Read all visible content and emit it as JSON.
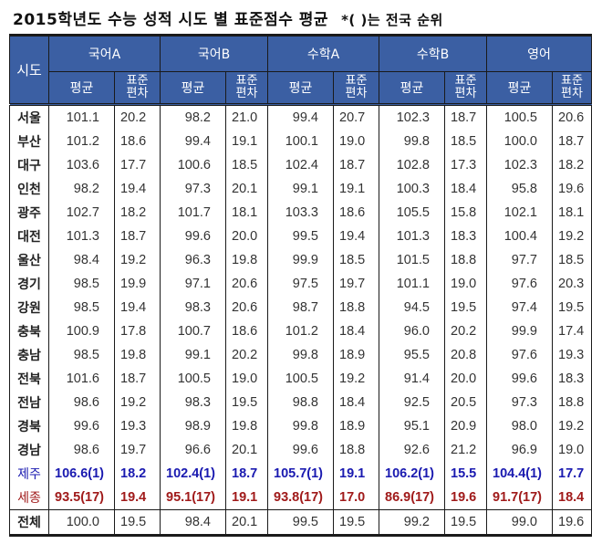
{
  "title": {
    "main": "2015학년도 수능 성적 시도 별 표준점수 평균",
    "note": "*( )는 전국 순위"
  },
  "table": {
    "region_header": "시도",
    "subjects": [
      "국어A",
      "국어B",
      "수학A",
      "수학B",
      "영어"
    ],
    "sub_headers": {
      "avg": "평균",
      "sd_line1": "표준",
      "sd_line2": "편차"
    },
    "colors": {
      "header_bg": "#3b5fa3",
      "header_text": "#ffffff",
      "rank1": "#1a1ab0",
      "rank17": "#a01a1a"
    },
    "rows": [
      {
        "region": "서울",
        "values": [
          "101.1",
          "20.2",
          "98.2",
          "21.0",
          "99.4",
          "20.7",
          "102.3",
          "18.7",
          "100.5",
          "20.6"
        ]
      },
      {
        "region": "부산",
        "values": [
          "101.2",
          "18.6",
          "99.4",
          "19.1",
          "100.1",
          "19.0",
          "99.8",
          "18.5",
          "100.0",
          "18.7"
        ]
      },
      {
        "region": "대구",
        "values": [
          "103.6",
          "17.7",
          "100.6",
          "18.5",
          "102.4",
          "18.7",
          "102.8",
          "17.3",
          "102.3",
          "18.2"
        ]
      },
      {
        "region": "인천",
        "values": [
          "98.2",
          "19.4",
          "97.3",
          "20.1",
          "99.1",
          "19.1",
          "100.3",
          "18.4",
          "95.8",
          "19.6"
        ]
      },
      {
        "region": "광주",
        "values": [
          "102.7",
          "18.2",
          "101.7",
          "18.1",
          "103.3",
          "18.6",
          "105.5",
          "15.8",
          "102.1",
          "18.1"
        ]
      },
      {
        "region": "대전",
        "values": [
          "101.3",
          "18.7",
          "99.6",
          "20.0",
          "99.5",
          "19.4",
          "101.3",
          "18.3",
          "100.4",
          "19.2"
        ]
      },
      {
        "region": "울산",
        "values": [
          "98.4",
          "19.2",
          "96.3",
          "19.8",
          "99.9",
          "18.5",
          "101.5",
          "18.8",
          "97.7",
          "18.5"
        ]
      },
      {
        "region": "경기",
        "values": [
          "98.5",
          "19.9",
          "97.1",
          "20.6",
          "97.5",
          "19.7",
          "101.1",
          "19.0",
          "97.6",
          "20.3"
        ]
      },
      {
        "region": "강원",
        "values": [
          "98.5",
          "19.4",
          "98.3",
          "20.6",
          "98.7",
          "18.8",
          "94.5",
          "19.5",
          "97.4",
          "19.5"
        ]
      },
      {
        "region": "충북",
        "values": [
          "100.9",
          "17.8",
          "100.7",
          "18.6",
          "101.2",
          "18.4",
          "96.0",
          "20.2",
          "99.9",
          "17.4"
        ]
      },
      {
        "region": "충남",
        "values": [
          "98.5",
          "19.8",
          "99.1",
          "20.2",
          "99.8",
          "18.9",
          "95.5",
          "20.8",
          "97.6",
          "19.3"
        ]
      },
      {
        "region": "전북",
        "values": [
          "101.6",
          "18.7",
          "100.5",
          "19.0",
          "100.5",
          "19.2",
          "91.4",
          "20.0",
          "99.6",
          "18.3"
        ]
      },
      {
        "region": "전남",
        "values": [
          "98.6",
          "19.2",
          "98.3",
          "19.5",
          "98.8",
          "18.4",
          "92.5",
          "20.5",
          "97.3",
          "18.8"
        ]
      },
      {
        "region": "경북",
        "values": [
          "99.6",
          "19.3",
          "98.9",
          "19.8",
          "99.8",
          "18.9",
          "95.1",
          "20.9",
          "98.0",
          "19.2"
        ]
      },
      {
        "region": "경남",
        "values": [
          "98.6",
          "19.7",
          "96.6",
          "20.1",
          "99.6",
          "18.8",
          "92.6",
          "21.2",
          "96.9",
          "19.0"
        ]
      },
      {
        "region": "제주",
        "highlight": "blue",
        "values": [
          "106.6(1)",
          "18.2",
          "102.4(1)",
          "18.7",
          "105.7(1)",
          "19.1",
          "106.2(1)",
          "15.5",
          "104.4(1)",
          "17.7"
        ]
      },
      {
        "region": "세종",
        "highlight": "red",
        "values": [
          "93.5(17)",
          "19.4",
          "95.1(17)",
          "19.1",
          "93.8(17)",
          "17.0",
          "86.9(17)",
          "19.6",
          "91.7(17)",
          "18.4"
        ]
      }
    ],
    "total": {
      "region": "전체",
      "values": [
        "100.0",
        "19.5",
        "98.4",
        "20.1",
        "99.5",
        "19.5",
        "99.2",
        "19.5",
        "99.0",
        "19.6"
      ]
    }
  }
}
